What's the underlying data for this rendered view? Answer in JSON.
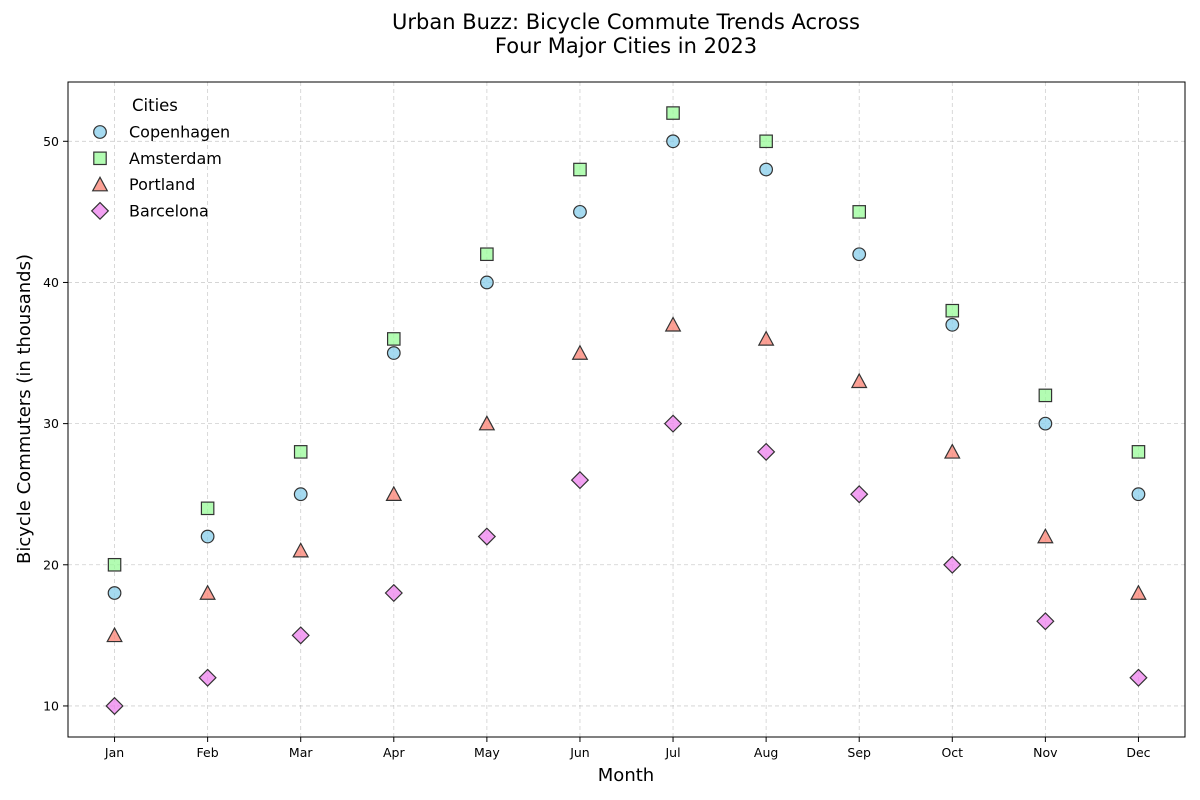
{
  "chart_data": {
    "type": "scatter",
    "title": "Urban Buzz: Bicycle Commute Trends Across\nFour Major Cities in 2023",
    "xlabel": "Month",
    "ylabel": "Bicycle Commuters (in thousands)",
    "categories": [
      "Jan",
      "Feb",
      "Mar",
      "Apr",
      "May",
      "Jun",
      "Jul",
      "Aug",
      "Sep",
      "Oct",
      "Nov",
      "Dec"
    ],
    "ylim": [
      7.8,
      54.2
    ],
    "yticks": [
      10,
      20,
      30,
      40,
      50
    ],
    "grid": true,
    "legend": {
      "title": "Cities",
      "placement": "top-left"
    },
    "series": [
      {
        "name": "Copenhagen",
        "marker": "circle",
        "color": "#87ceeb",
        "values": [
          18,
          22,
          25,
          35,
          40,
          45,
          50,
          48,
          42,
          37,
          30,
          25
        ]
      },
      {
        "name": "Amsterdam",
        "marker": "square",
        "color": "#98fb98",
        "values": [
          20,
          24,
          28,
          36,
          42,
          48,
          52,
          50,
          45,
          38,
          32,
          28
        ]
      },
      {
        "name": "Portland",
        "marker": "triangle",
        "color": "#fa8072",
        "values": [
          15,
          18,
          21,
          25,
          30,
          35,
          37,
          36,
          33,
          28,
          22,
          18
        ]
      },
      {
        "name": "Barcelona",
        "marker": "diamond",
        "color": "#ee82ee",
        "values": [
          10,
          12,
          15,
          18,
          22,
          26,
          30,
          28,
          25,
          20,
          16,
          12
        ]
      }
    ]
  }
}
